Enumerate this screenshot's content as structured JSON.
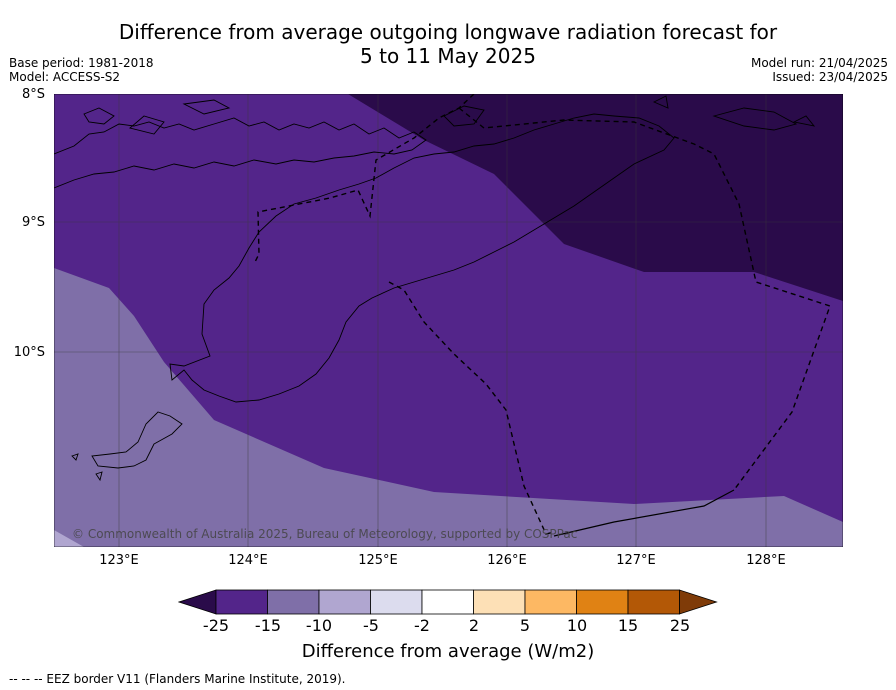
{
  "title_line1": "Difference from average outgoing longwave radiation forecast for",
  "title_line2": "5 to 11 May 2025",
  "meta_left": [
    "Base period: 1981-2018",
    "Model: ACCESS-S2"
  ],
  "meta_right": [
    "Model run: 21/04/2025",
    "Issued: 23/04/2025"
  ],
  "lat_labels": [
    "8°S",
    "9°S",
    "10°S"
  ],
  "lon_labels": [
    "123°E",
    "124°E",
    "125°E",
    "126°E",
    "127°E",
    "128°E"
  ],
  "copyright": "© Commonwealth of Australia 2025, Bureau of Meteorology, supported by COSPPac",
  "colorbar": {
    "ticks": [
      "-25",
      "-15",
      "-10",
      "-5",
      "-2",
      "2",
      "5",
      "10",
      "15",
      "25"
    ],
    "colors": [
      "#2a0b4a",
      "#53258a",
      "#7f6fa8",
      "#b0a6d0",
      "#dcdcee",
      "#ffffff",
      "#fde0b6",
      "#fdb863",
      "#e08214",
      "#b35806",
      "#7f3b08"
    ],
    "label": "Difference from average (W/m2)"
  },
  "footnote": "--  --  -- EEZ border V11 (Flanders Marine Institute, 2019)."
}
